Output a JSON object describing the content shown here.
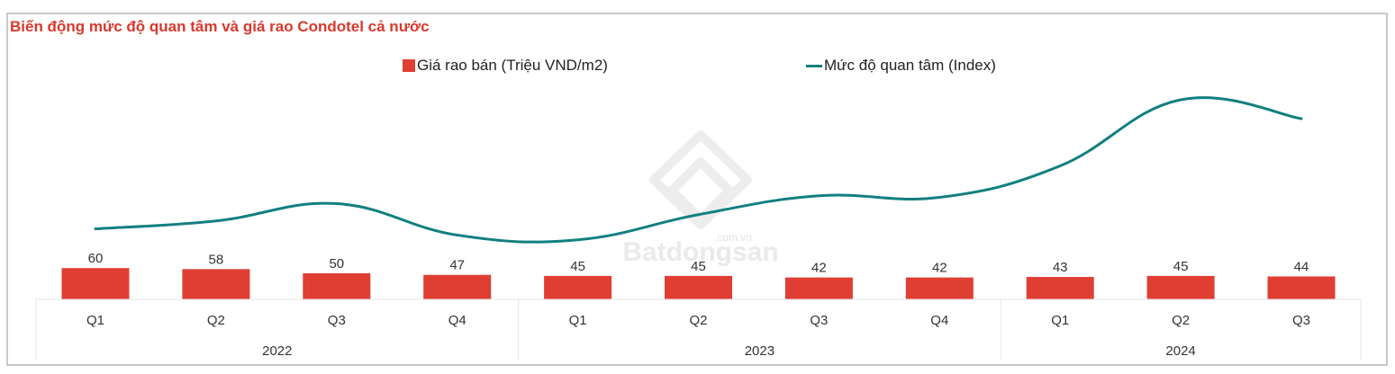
{
  "title": "Biến động mức độ quan tâm và giá rao Condotel cả nước",
  "legend": {
    "bar_label": "Giá rao bán (Triệu VND/m2)",
    "line_label": "Mức độ quan tâm (Index)"
  },
  "watermark": {
    "brand": "Batdongsan",
    "suffix": ".com.vn"
  },
  "colors": {
    "title": "#d9382c",
    "bar": "#e03e33",
    "line": "#127f80",
    "grid": "#e6e6e6"
  },
  "chart_data": {
    "type": "bar+line",
    "title": "Biến động mức độ quan tâm và giá rao Condotel cả nước",
    "categories": [
      "Q1 2022",
      "Q2 2022",
      "Q3 2022",
      "Q4 2022",
      "Q1 2023",
      "Q2 2023",
      "Q3 2023",
      "Q4 2023",
      "Q1 2024",
      "Q2 2024",
      "Q3 2024"
    ],
    "quarters": [
      "Q1",
      "Q2",
      "Q3",
      "Q4",
      "Q1",
      "Q2",
      "Q3",
      "Q4",
      "Q1",
      "Q2",
      "Q3"
    ],
    "years": [
      {
        "label": "2022",
        "span": 4
      },
      {
        "label": "2023",
        "span": 4
      },
      {
        "label": "2024",
        "span": 3
      }
    ],
    "series": [
      {
        "name": "Giá rao bán (Triệu VND/m2)",
        "type": "bar",
        "values": [
          60,
          58,
          50,
          47,
          45,
          45,
          42,
          42,
          43,
          45,
          44
        ]
      },
      {
        "name": "Mức độ quan tâm (Index)",
        "type": "line",
        "values": [
          26,
          31,
          42,
          22,
          19,
          35,
          47,
          46,
          66,
          108,
          96
        ],
        "note": "relative index estimated from pixel heights; no axis shown"
      }
    ],
    "xlabel": "",
    "ylabel": "",
    "legend_position": "top",
    "grid": false
  }
}
